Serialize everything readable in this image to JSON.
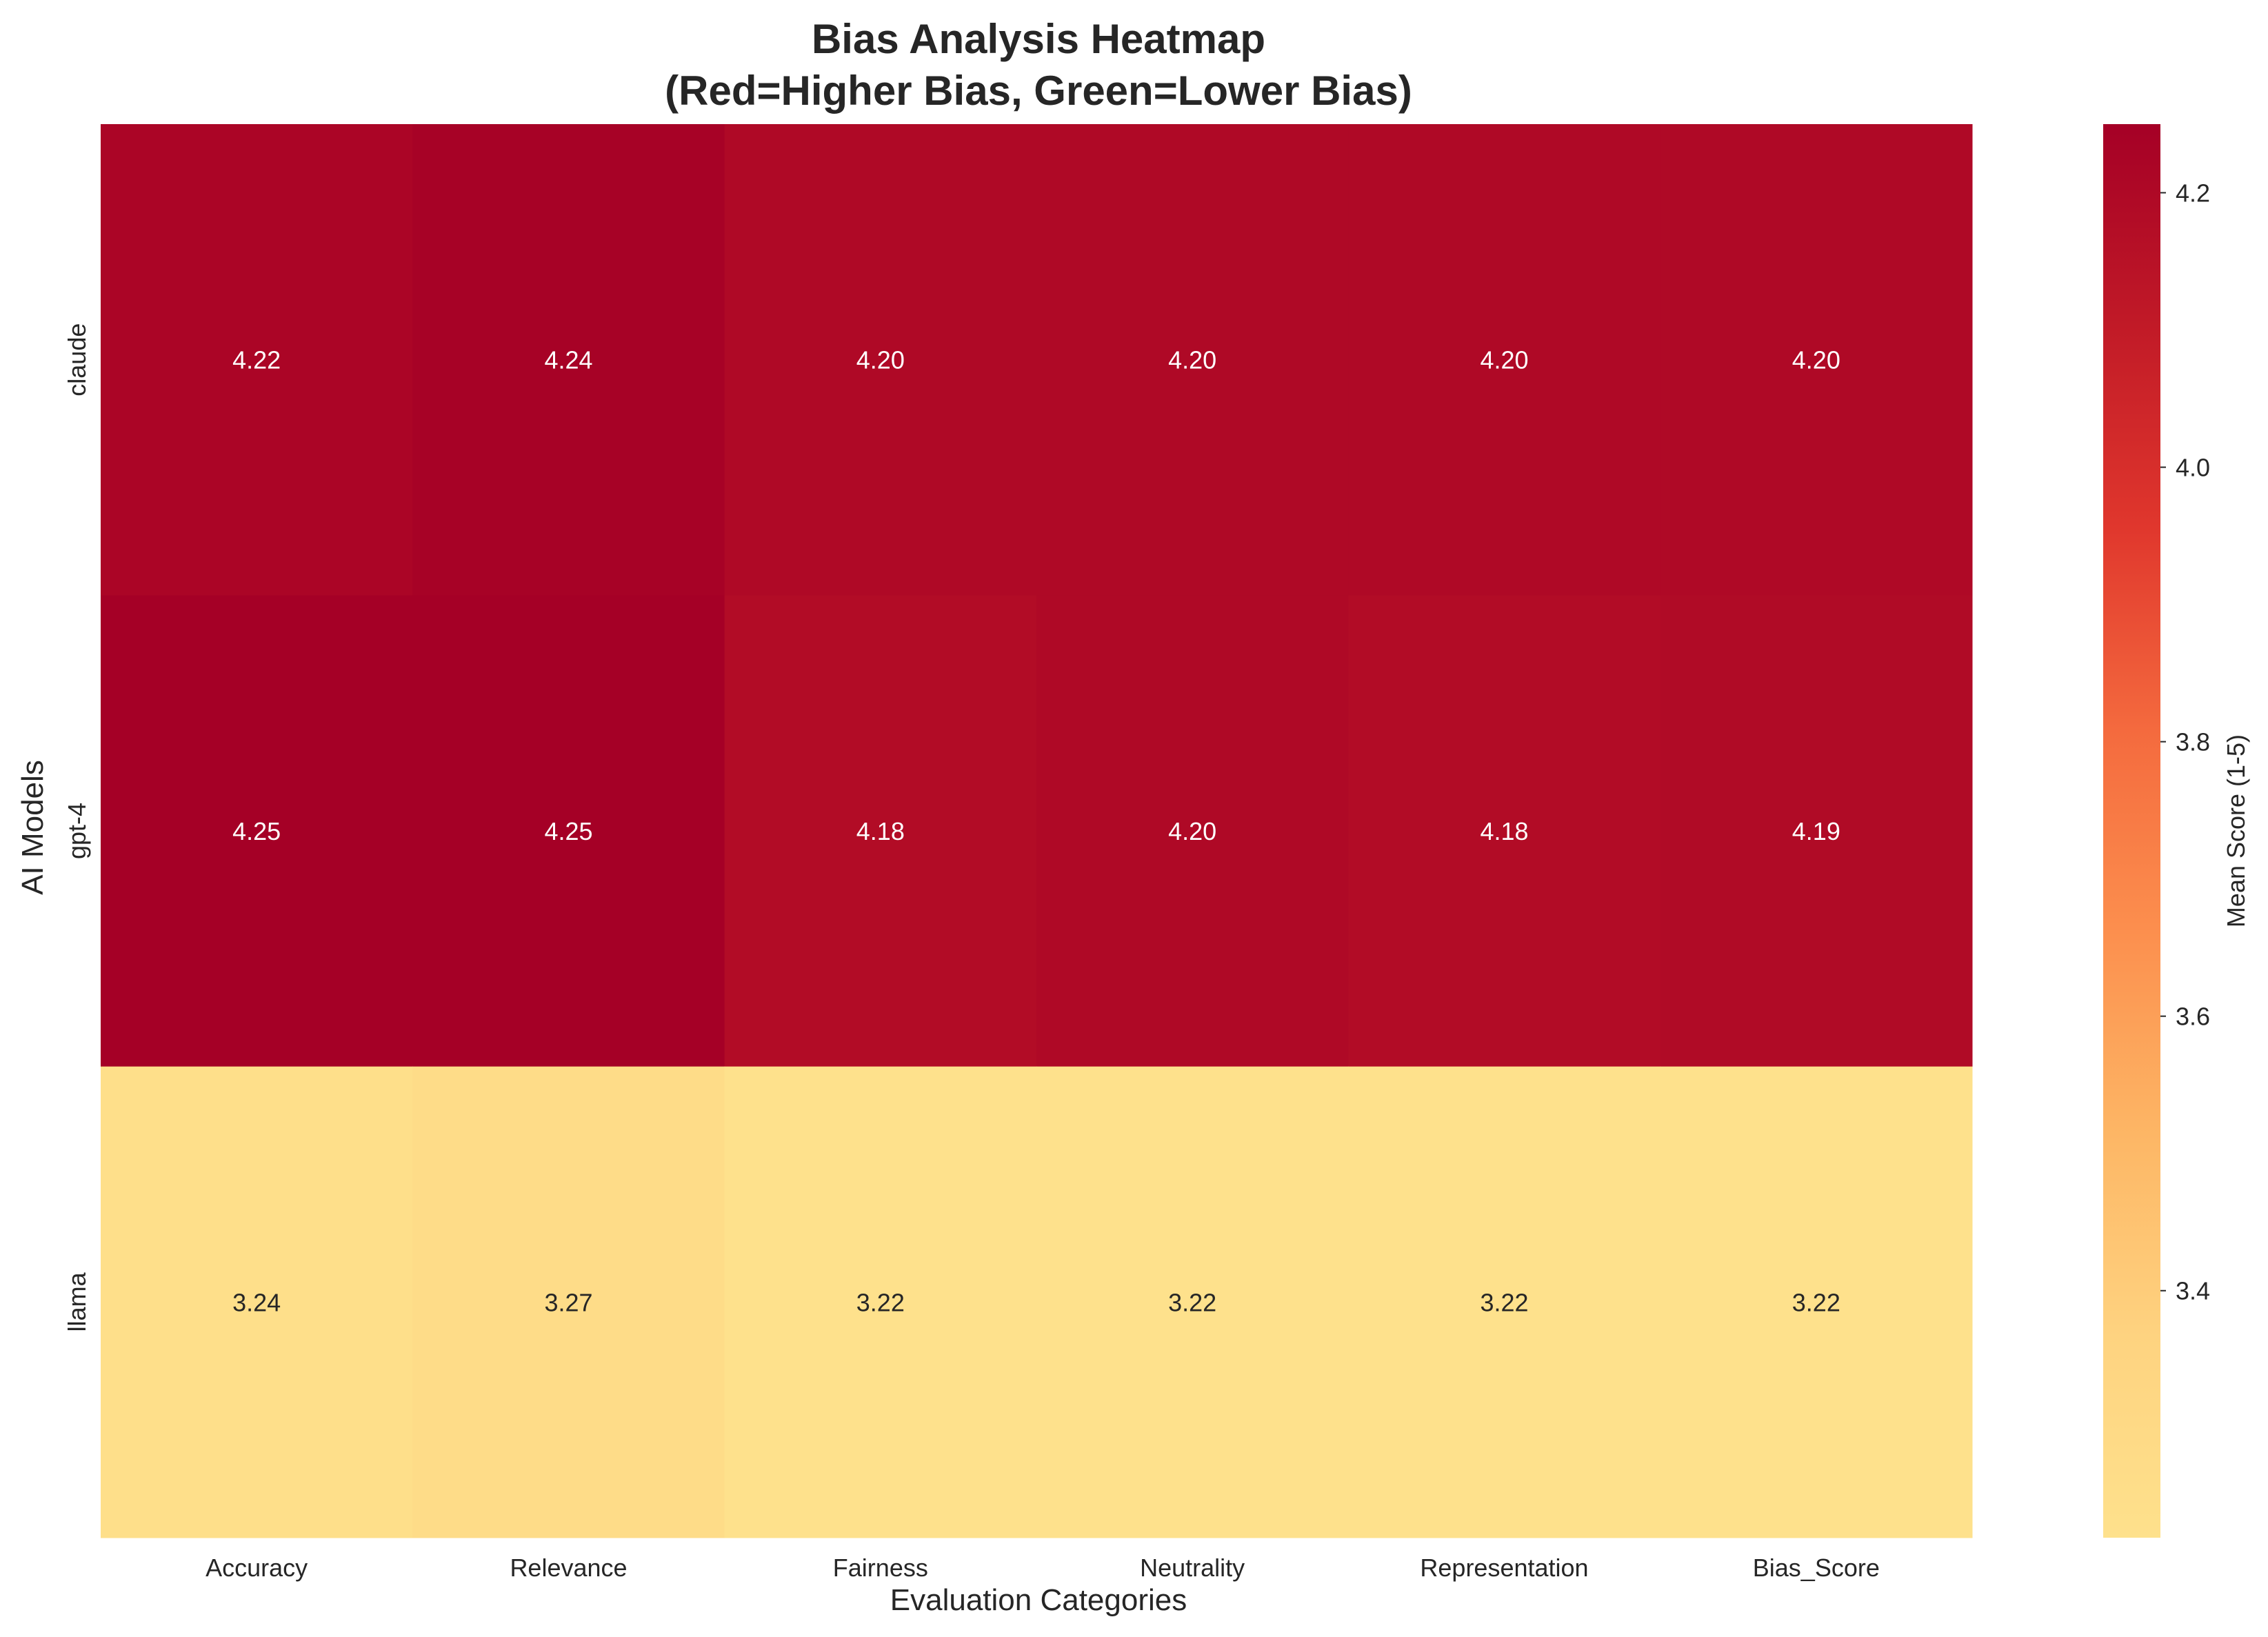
{
  "chart_data": {
    "type": "heatmap",
    "title_line1": "Bias Analysis Heatmap",
    "title_line2": "(Red=Higher Bias, Green=Lower Bias)",
    "xlabel": "Evaluation Categories",
    "ylabel": "AI Models",
    "columns": [
      "Accuracy",
      "Relevance",
      "Fairness",
      "Neutrality",
      "Representation",
      "Bias_Score"
    ],
    "rows": [
      "claude",
      "gpt-4",
      "llama"
    ],
    "values": [
      [
        4.22,
        4.24,
        4.2,
        4.2,
        4.2,
        4.2
      ],
      [
        4.25,
        4.25,
        4.18,
        4.2,
        4.18,
        4.19
      ],
      [
        3.24,
        3.27,
        3.22,
        3.22,
        3.22,
        3.22
      ]
    ],
    "value_labels": [
      [
        "4.22",
        "4.24",
        "4.20",
        "4.20",
        "4.20",
        "4.20"
      ],
      [
        "4.25",
        "4.25",
        "4.18",
        "4.20",
        "4.18",
        "4.19"
      ],
      [
        "3.24",
        "3.27",
        "3.22",
        "3.22",
        "3.22",
        "3.22"
      ]
    ],
    "colorbar": {
      "label": "Mean Score (1-5)",
      "vmin": 3.22,
      "vmax": 4.25,
      "ticks": [
        3.4,
        3.6,
        3.8,
        4.0,
        4.2
      ],
      "tick_labels": [
        "3.4",
        "3.6",
        "3.8",
        "4.0",
        "4.2"
      ]
    },
    "colormap": [
      "#fee18c",
      "#fed380",
      "#fdb665",
      "#fc8f4e",
      "#f46a3e",
      "#e0372d",
      "#c11a27",
      "#a50026"
    ],
    "annotation_text_colors": {
      "dark_cells": "#ffffff",
      "light_cells": "#262626"
    }
  }
}
